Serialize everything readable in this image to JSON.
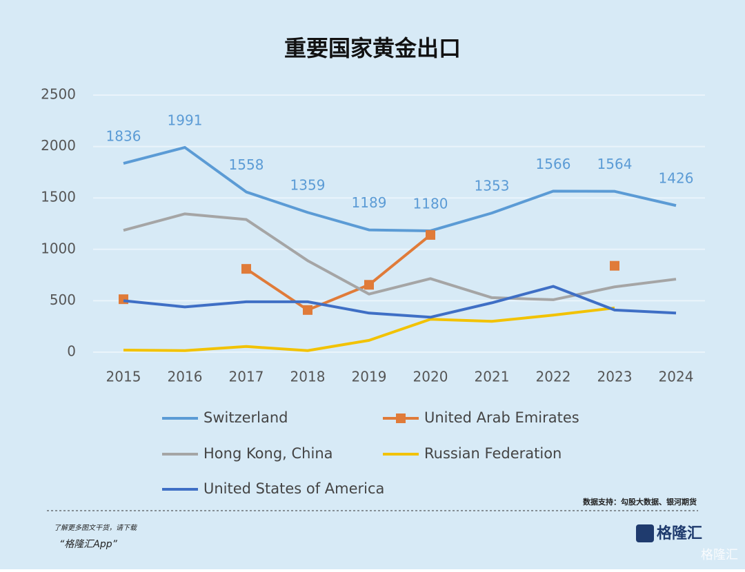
{
  "chart_data": {
    "type": "line",
    "title": "重要国家黄金出口",
    "categories": [
      "2015",
      "2016",
      "2017",
      "2018",
      "2019",
      "2020",
      "2021",
      "2022",
      "2023",
      "2024"
    ],
    "series": [
      {
        "name": "Switzerland",
        "color": "#5b9bd5",
        "values": [
          1836,
          1991,
          1558,
          1359,
          1189,
          1180,
          1353,
          1566,
          1564,
          1426
        ],
        "data_labels": true
      },
      {
        "name": "United Arab Emirates",
        "color": "#e07b39",
        "values": [
          515,
          null,
          810,
          410,
          655,
          1140,
          null,
          null,
          840,
          null
        ],
        "marker": "square"
      },
      {
        "name": "Hong Kong, China",
        "color": "#a5a5a5",
        "values": [
          1185,
          1345,
          1290,
          890,
          565,
          715,
          530,
          510,
          635,
          710
        ]
      },
      {
        "name": "Russian Federation",
        "color": "#f2c200",
        "values": [
          20,
          15,
          55,
          15,
          115,
          320,
          300,
          360,
          430,
          null
        ]
      },
      {
        "name": "United States of America",
        "color": "#3f6fc5",
        "values": [
          500,
          440,
          490,
          490,
          380,
          340,
          480,
          640,
          410,
          380
        ]
      }
    ],
    "ylim": [
      0,
      2500
    ],
    "yticks": [
      0,
      500,
      1000,
      1500,
      2000,
      2500
    ],
    "grid": true,
    "source": "数据支持：勾股大数据、银河期货"
  },
  "footer": {
    "prompt": "了解更多图文干货，请下载",
    "app": "“格隆汇App”",
    "brand": "格隆汇"
  }
}
